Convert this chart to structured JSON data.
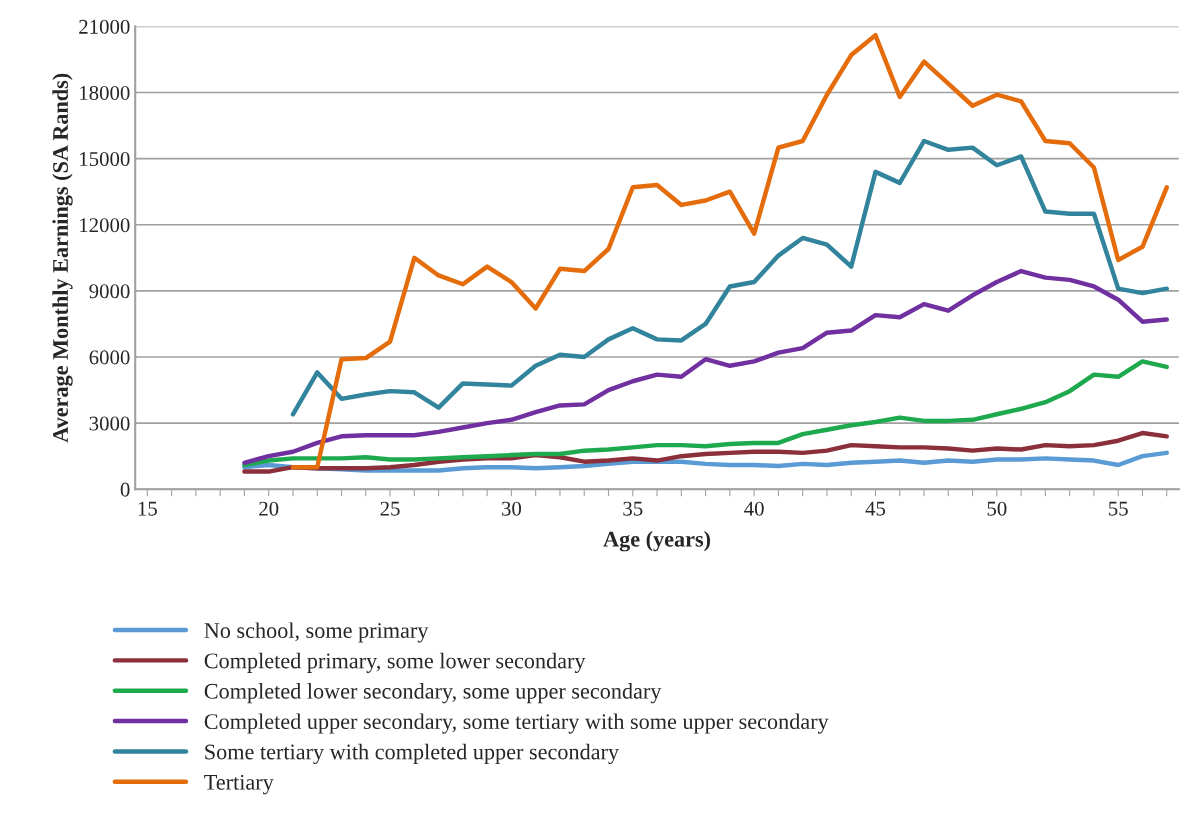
{
  "chart_data": {
    "type": "line",
    "xlabel": "Age (years)",
    "ylabel": "Average Monthly Earnings (SA Rands)",
    "xlim": [
      14.5,
      57.5
    ],
    "ylim": [
      0,
      21000
    ],
    "xticks": [
      15,
      {
        "value": 16,
        "label": null
      },
      {
        "value": 17,
        "label": null
      },
      {
        "value": 18,
        "label": null
      },
      {
        "value": 19,
        "label": null
      },
      20,
      {
        "value": 21,
        "label": null
      },
      {
        "value": 22,
        "label": null
      },
      {
        "value": 23,
        "label": null
      },
      {
        "value": 24,
        "label": null
      },
      25,
      {
        "value": 26,
        "label": null
      },
      {
        "value": 27,
        "label": null
      },
      {
        "value": 28,
        "label": null
      },
      {
        "value": 29,
        "label": null
      },
      30,
      {
        "value": 31,
        "label": null
      },
      {
        "value": 32,
        "label": null
      },
      {
        "value": 33,
        "label": null
      },
      {
        "value": 34,
        "label": null
      },
      35,
      {
        "value": 36,
        "label": null
      },
      {
        "value": 37,
        "label": null
      },
      {
        "value": 38,
        "label": null
      },
      {
        "value": 39,
        "label": null
      },
      40,
      {
        "value": 41,
        "label": null
      },
      {
        "value": 42,
        "label": null
      },
      {
        "value": 43,
        "label": null
      },
      {
        "value": 44,
        "label": null
      },
      45,
      {
        "value": 46,
        "label": null
      },
      {
        "value": 47,
        "label": null
      },
      {
        "value": 48,
        "label": null
      },
      {
        "value": 49,
        "label": null
      },
      50,
      {
        "value": 51,
        "label": null
      },
      {
        "value": 52,
        "label": null
      },
      {
        "value": 53,
        "label": null
      },
      {
        "value": 54,
        "label": null
      },
      55,
      {
        "value": 56,
        "label": null
      },
      {
        "value": 57,
        "label": null
      }
    ],
    "yticks": [
      0,
      3000,
      6000,
      9000,
      12000,
      15000,
      18000,
      21000
    ],
    "grid": "y",
    "legend": "bottom",
    "marker": "none",
    "line_style": "solid",
    "series": [
      {
        "name": "No school, some primary",
        "color": "#5b9bd5",
        "x": [
          19,
          20,
          21,
          22,
          23,
          24,
          25,
          26,
          27,
          28,
          29,
          30,
          31,
          32,
          33,
          34,
          35,
          36,
          37,
          38,
          39,
          40,
          41,
          42,
          43,
          44,
          45,
          46,
          47,
          48,
          49,
          50,
          51,
          52,
          53,
          54,
          55,
          56,
          57
        ],
        "values": [
          1000,
          1100,
          1000,
          950,
          900,
          850,
          850,
          850,
          850,
          950,
          1000,
          1000,
          950,
          1000,
          1050,
          1150,
          1250,
          1250,
          1250,
          1150,
          1100,
          1100,
          1050,
          1150,
          1100,
          1200,
          1250,
          1300,
          1200,
          1300,
          1250,
          1350,
          1350,
          1400,
          1350,
          1300,
          1100,
          1500,
          1650
        ]
      },
      {
        "name": "Completed primary, some lower secondary",
        "color": "#8b2f3a",
        "x": [
          19,
          20,
          21,
          22,
          23,
          24,
          25,
          26,
          27,
          28,
          29,
          30,
          31,
          32,
          33,
          34,
          35,
          36,
          37,
          38,
          39,
          40,
          41,
          42,
          43,
          44,
          45,
          46,
          47,
          48,
          49,
          50,
          51,
          52,
          53,
          54,
          55,
          56,
          57
        ],
        "values": [
          800,
          800,
          1000,
          950,
          950,
          950,
          1000,
          1100,
          1250,
          1350,
          1400,
          1400,
          1550,
          1450,
          1250,
          1300,
          1400,
          1300,
          1500,
          1600,
          1650,
          1700,
          1700,
          1650,
          1750,
          2000,
          1950,
          1900,
          1900,
          1850,
          1750,
          1850,
          1800,
          2000,
          1950,
          2000,
          2200,
          2550,
          2400
        ]
      },
      {
        "name": "Completed lower secondary, some upper secondary",
        "color": "#1fa94f",
        "x": [
          19,
          20,
          21,
          22,
          23,
          24,
          25,
          26,
          27,
          28,
          29,
          30,
          31,
          32,
          33,
          34,
          35,
          36,
          37,
          38,
          39,
          40,
          41,
          42,
          43,
          44,
          45,
          46,
          47,
          48,
          49,
          50,
          51,
          52,
          53,
          54,
          55,
          56,
          57
        ],
        "values": [
          1100,
          1300,
          1400,
          1400,
          1400,
          1450,
          1350,
          1350,
          1400,
          1450,
          1500,
          1550,
          1600,
          1600,
          1750,
          1800,
          1900,
          2000,
          2000,
          1950,
          2050,
          2100,
          2100,
          2500,
          2700,
          2900,
          3050,
          3250,
          3100,
          3100,
          3150,
          3400,
          3650,
          3950,
          4450,
          5200,
          5100,
          5800,
          5550
        ]
      },
      {
        "name": "Completed upper secondary, some tertiary with some upper secondary",
        "color": "#7030a0",
        "x": [
          19,
          20,
          21,
          22,
          23,
          24,
          25,
          26,
          27,
          28,
          29,
          30,
          31,
          32,
          33,
          34,
          35,
          36,
          37,
          38,
          39,
          40,
          41,
          42,
          43,
          44,
          45,
          46,
          47,
          48,
          49,
          50,
          51,
          52,
          53,
          54,
          55,
          56,
          57
        ],
        "values": [
          1200,
          1500,
          1700,
          2100,
          2400,
          2450,
          2450,
          2450,
          2600,
          2800,
          3000,
          3150,
          3500,
          3800,
          3850,
          4500,
          4900,
          5200,
          5100,
          5900,
          5600,
          5800,
          6200,
          6400,
          7100,
          7200,
          7900,
          7800,
          8400,
          8100,
          8800,
          9400,
          9900,
          9600,
          9500,
          9200,
          8600,
          7600,
          7700
        ]
      },
      {
        "name": "Some tertiary with completed upper secondary",
        "color": "#31849b",
        "x": [
          21,
          22,
          23,
          24,
          25,
          26,
          27,
          28,
          29,
          30,
          31,
          32,
          33,
          34,
          35,
          36,
          37,
          38,
          39,
          40,
          41,
          42,
          43,
          44,
          45,
          46,
          47,
          48,
          49,
          50,
          51,
          52,
          53,
          54,
          55,
          56,
          57
        ],
        "values": [
          3400,
          5300,
          4100,
          4300,
          4450,
          4400,
          3700,
          4800,
          4750,
          4700,
          5600,
          6100,
          6000,
          6800,
          7300,
          6800,
          6750,
          7500,
          9200,
          9400,
          10600,
          11400,
          11100,
          10100,
          14400,
          13900,
          15800,
          15400,
          15500,
          14700,
          15100,
          12600,
          12500,
          12500,
          9100,
          8900,
          9100
        ]
      },
      {
        "name": "Tertiary",
        "color": "#e46c0a",
        "x": [
          21,
          22,
          23,
          24,
          25,
          26,
          27,
          28,
          29,
          30,
          31,
          32,
          33,
          34,
          35,
          36,
          37,
          38,
          39,
          40,
          41,
          42,
          43,
          44,
          45,
          46,
          47,
          48,
          49,
          50,
          51,
          52,
          53,
          54,
          55,
          56,
          57
        ],
        "values": [
          1000,
          1000,
          5900,
          5950,
          6700,
          10500,
          9700,
          9300,
          10100,
          9400,
          8200,
          10000,
          9900,
          10900,
          13700,
          13800,
          12900,
          13100,
          13500,
          11600,
          15500,
          15800,
          17900,
          19700,
          20600,
          17800,
          19400,
          18400,
          17400,
          17900,
          17600,
          15800,
          15700,
          14600,
          10400,
          11000,
          13700
        ]
      }
    ]
  }
}
